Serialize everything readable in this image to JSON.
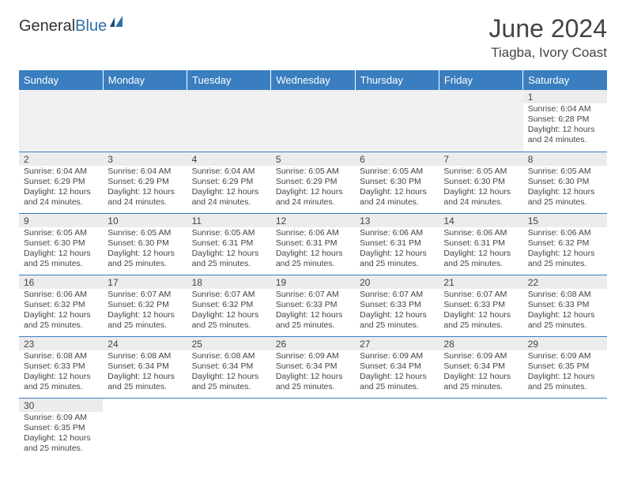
{
  "logo": {
    "text1": "General",
    "text2": "Blue"
  },
  "title": "June 2024",
  "location": "Tiagba, Ivory Coast",
  "colors": {
    "header_bg": "#3a7ebf",
    "header_fg": "#ffffff",
    "cell_border": "#3a7ebf",
    "shade": "#ececec",
    "text": "#444444"
  },
  "day_headers": [
    "Sunday",
    "Monday",
    "Tuesday",
    "Wednesday",
    "Thursday",
    "Friday",
    "Saturday"
  ],
  "weeks": [
    [
      null,
      null,
      null,
      null,
      null,
      null,
      {
        "n": "1",
        "sr": "6:04 AM",
        "ss": "6:28 PM",
        "dl": "12 hours and 24 minutes."
      }
    ],
    [
      {
        "n": "2",
        "sr": "6:04 AM",
        "ss": "6:29 PM",
        "dl": "12 hours and 24 minutes."
      },
      {
        "n": "3",
        "sr": "6:04 AM",
        "ss": "6:29 PM",
        "dl": "12 hours and 24 minutes."
      },
      {
        "n": "4",
        "sr": "6:04 AM",
        "ss": "6:29 PM",
        "dl": "12 hours and 24 minutes."
      },
      {
        "n": "5",
        "sr": "6:05 AM",
        "ss": "6:29 PM",
        "dl": "12 hours and 24 minutes."
      },
      {
        "n": "6",
        "sr": "6:05 AM",
        "ss": "6:30 PM",
        "dl": "12 hours and 24 minutes."
      },
      {
        "n": "7",
        "sr": "6:05 AM",
        "ss": "6:30 PM",
        "dl": "12 hours and 24 minutes."
      },
      {
        "n": "8",
        "sr": "6:05 AM",
        "ss": "6:30 PM",
        "dl": "12 hours and 25 minutes."
      }
    ],
    [
      {
        "n": "9",
        "sr": "6:05 AM",
        "ss": "6:30 PM",
        "dl": "12 hours and 25 minutes."
      },
      {
        "n": "10",
        "sr": "6:05 AM",
        "ss": "6:30 PM",
        "dl": "12 hours and 25 minutes."
      },
      {
        "n": "11",
        "sr": "6:05 AM",
        "ss": "6:31 PM",
        "dl": "12 hours and 25 minutes."
      },
      {
        "n": "12",
        "sr": "6:06 AM",
        "ss": "6:31 PM",
        "dl": "12 hours and 25 minutes."
      },
      {
        "n": "13",
        "sr": "6:06 AM",
        "ss": "6:31 PM",
        "dl": "12 hours and 25 minutes."
      },
      {
        "n": "14",
        "sr": "6:06 AM",
        "ss": "6:31 PM",
        "dl": "12 hours and 25 minutes."
      },
      {
        "n": "15",
        "sr": "6:06 AM",
        "ss": "6:32 PM",
        "dl": "12 hours and 25 minutes."
      }
    ],
    [
      {
        "n": "16",
        "sr": "6:06 AM",
        "ss": "6:32 PM",
        "dl": "12 hours and 25 minutes."
      },
      {
        "n": "17",
        "sr": "6:07 AM",
        "ss": "6:32 PM",
        "dl": "12 hours and 25 minutes."
      },
      {
        "n": "18",
        "sr": "6:07 AM",
        "ss": "6:32 PM",
        "dl": "12 hours and 25 minutes."
      },
      {
        "n": "19",
        "sr": "6:07 AM",
        "ss": "6:33 PM",
        "dl": "12 hours and 25 minutes."
      },
      {
        "n": "20",
        "sr": "6:07 AM",
        "ss": "6:33 PM",
        "dl": "12 hours and 25 minutes."
      },
      {
        "n": "21",
        "sr": "6:07 AM",
        "ss": "6:33 PM",
        "dl": "12 hours and 25 minutes."
      },
      {
        "n": "22",
        "sr": "6:08 AM",
        "ss": "6:33 PM",
        "dl": "12 hours and 25 minutes."
      }
    ],
    [
      {
        "n": "23",
        "sr": "6:08 AM",
        "ss": "6:33 PM",
        "dl": "12 hours and 25 minutes."
      },
      {
        "n": "24",
        "sr": "6:08 AM",
        "ss": "6:34 PM",
        "dl": "12 hours and 25 minutes."
      },
      {
        "n": "25",
        "sr": "6:08 AM",
        "ss": "6:34 PM",
        "dl": "12 hours and 25 minutes."
      },
      {
        "n": "26",
        "sr": "6:09 AM",
        "ss": "6:34 PM",
        "dl": "12 hours and 25 minutes."
      },
      {
        "n": "27",
        "sr": "6:09 AM",
        "ss": "6:34 PM",
        "dl": "12 hours and 25 minutes."
      },
      {
        "n": "28",
        "sr": "6:09 AM",
        "ss": "6:34 PM",
        "dl": "12 hours and 25 minutes."
      },
      {
        "n": "29",
        "sr": "6:09 AM",
        "ss": "6:35 PM",
        "dl": "12 hours and 25 minutes."
      }
    ],
    [
      {
        "n": "30",
        "sr": "6:09 AM",
        "ss": "6:35 PM",
        "dl": "12 hours and 25 minutes."
      },
      null,
      null,
      null,
      null,
      null,
      null
    ]
  ],
  "labels": {
    "sunrise": "Sunrise:",
    "sunset": "Sunset:",
    "daylight": "Daylight:"
  }
}
